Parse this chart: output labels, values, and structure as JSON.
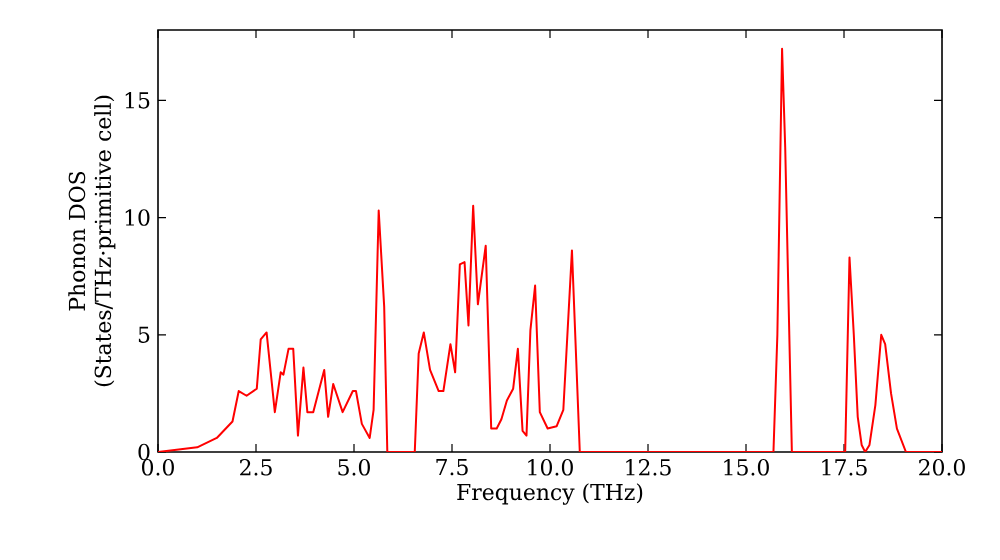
{
  "chart_data": {
    "type": "line",
    "xlabel": "Frequency (THz)",
    "ylabel": "Phonon DOS (States/THz·primitive cell)",
    "xlim": [
      0,
      20
    ],
    "ylim": [
      0,
      18
    ],
    "xticks": [
      {
        "value": 0,
        "label": "0.0"
      },
      {
        "value": 2.5,
        "label": "2.5"
      },
      {
        "value": 5,
        "label": "5.0"
      },
      {
        "value": 7.5,
        "label": "7.5"
      },
      {
        "value": 10,
        "label": "10.0"
      },
      {
        "value": 12.5,
        "label": "12.5"
      },
      {
        "value": 15,
        "label": "15.0"
      },
      {
        "value": 17.5,
        "label": "17.5"
      },
      {
        "value": 20,
        "label": "20.0"
      }
    ],
    "yticks": [
      0,
      5,
      10,
      15
    ],
    "grid": false,
    "marker": "none",
    "line_style": "solid",
    "series": [
      {
        "color": "#ff0000",
        "x": [
          0,
          0.5,
          1.0,
          1.5,
          1.9,
          2.06,
          2.26,
          2.52,
          2.62,
          2.77,
          2.98,
          3.13,
          3.2,
          3.33,
          3.45,
          3.57,
          3.71,
          3.81,
          3.96,
          4.24,
          4.34,
          4.47,
          4.71,
          4.97,
          5.05,
          5.2,
          5.4,
          5.5,
          5.63,
          5.77,
          5.85,
          6.52,
          6.55,
          6.65,
          6.78,
          6.94,
          7.16,
          7.28,
          7.46,
          7.58,
          7.7,
          7.82,
          7.92,
          8.04,
          8.16,
          8.36,
          8.5,
          8.64,
          8.76,
          8.9,
          9.06,
          9.18,
          9.3,
          9.4,
          9.5,
          9.62,
          9.74,
          9.94,
          10.17,
          10.34,
          10.56,
          10.76,
          15.7,
          15.8,
          15.92,
          16.0,
          16.17,
          17.53,
          17.64,
          17.75,
          17.85,
          17.95,
          18.04,
          18.15,
          18.3,
          18.45,
          18.55,
          18.7,
          18.85,
          19.08,
          20
        ],
        "values": [
          0,
          0.1,
          0.2,
          0.6,
          1.3,
          2.6,
          2.4,
          2.7,
          4.8,
          5.1,
          1.7,
          3.4,
          3.3,
          4.4,
          4.4,
          0.7,
          3.6,
          1.7,
          1.7,
          3.5,
          1.5,
          2.9,
          1.7,
          2.6,
          2.6,
          1.2,
          0.6,
          1.8,
          10.3,
          6.2,
          0,
          0,
          0,
          4.2,
          5.1,
          3.5,
          2.6,
          2.6,
          4.6,
          3.4,
          8.0,
          8.1,
          5.4,
          10.5,
          6.3,
          8.8,
          1.0,
          1.0,
          1.4,
          2.2,
          2.7,
          4.4,
          0.9,
          0.7,
          5.2,
          7.1,
          1.7,
          1.0,
          1.1,
          1.8,
          8.6,
          0,
          0,
          5,
          17.2,
          13,
          0,
          0,
          8.3,
          5,
          1.5,
          0.3,
          0,
          0.3,
          2.0,
          5.0,
          4.6,
          2.5,
          1.0,
          0,
          0
        ]
      }
    ]
  }
}
